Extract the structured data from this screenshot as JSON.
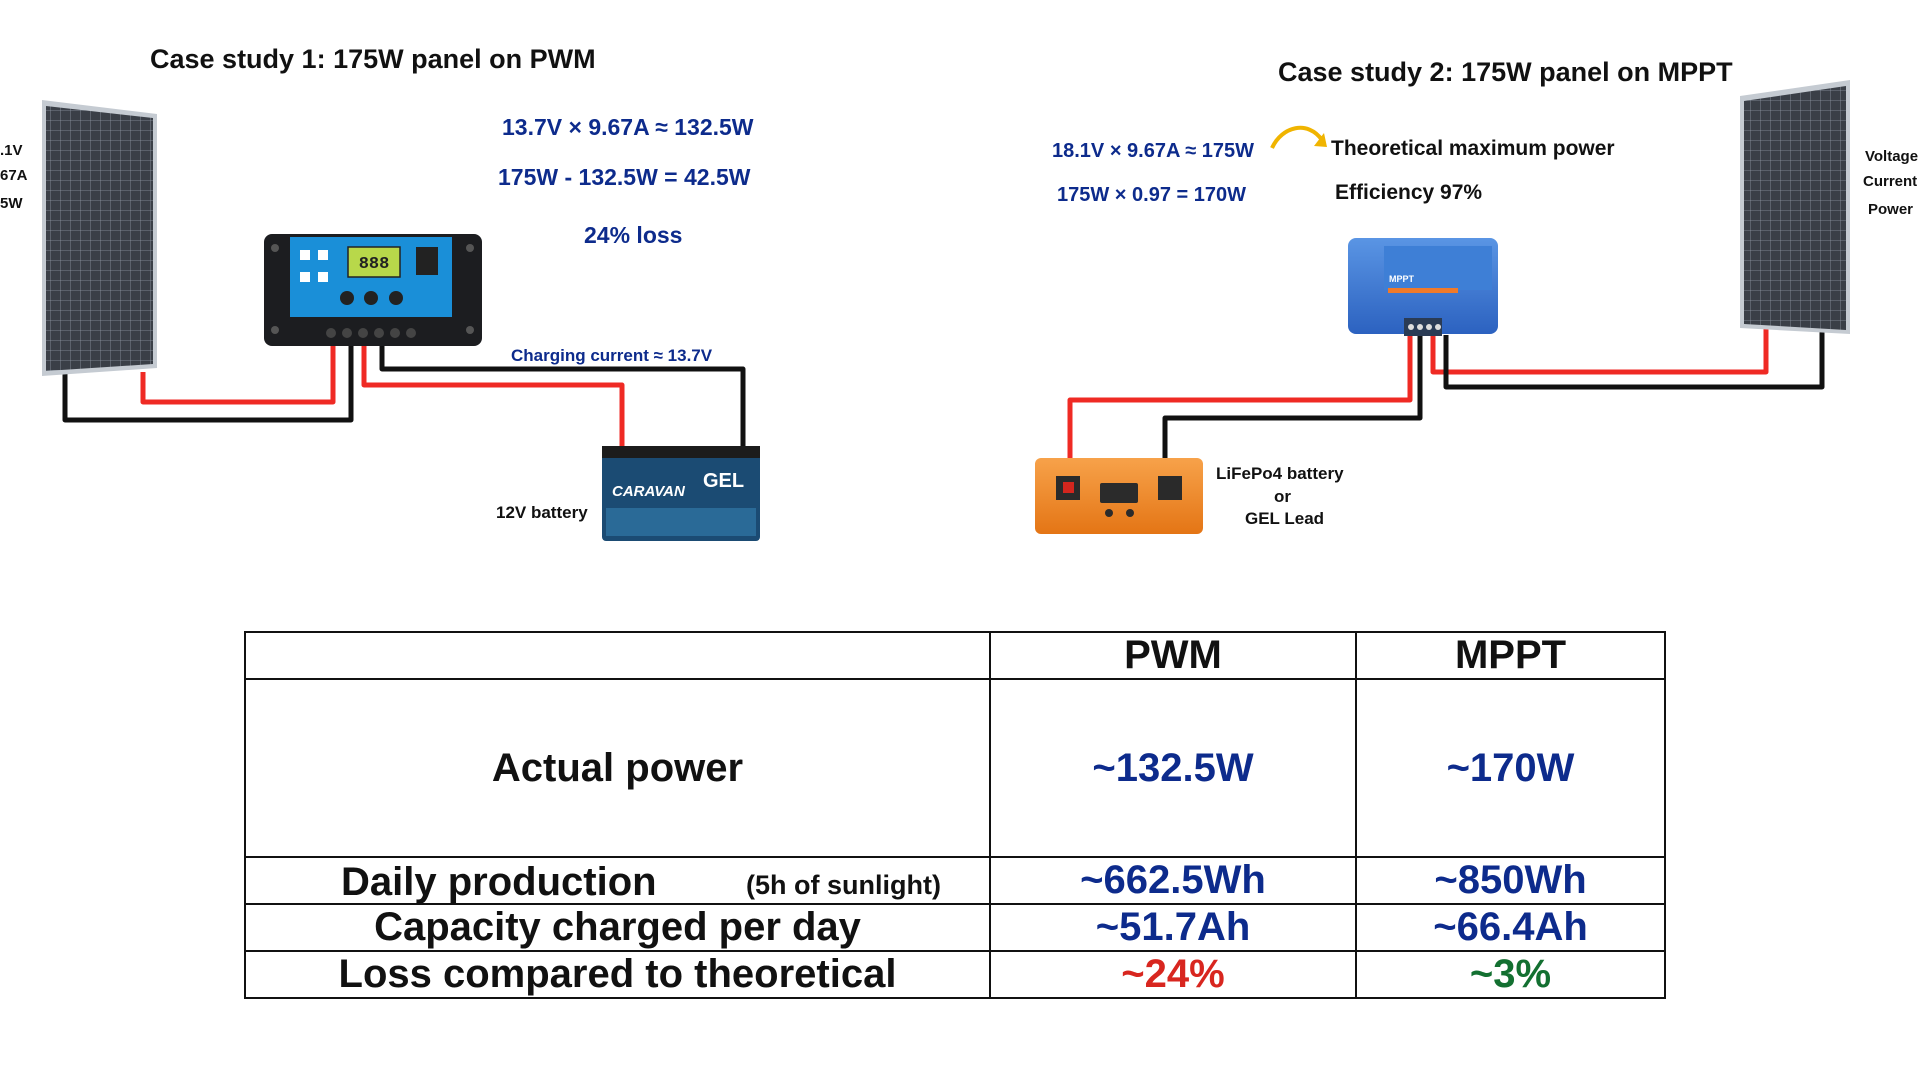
{
  "case1": {
    "title": "Case study 1: 175W panel on PWM",
    "calc1": "13.7V × 9.67A ≈ 132.5W",
    "calc2": "175W - 132.5W = 42.5W",
    "loss": "24% loss",
    "charging_current": "Charging current ≈ 13.7V",
    "battery_label": "12V battery",
    "panel_side_labels": [
      ".1V",
      "67A",
      "5W"
    ],
    "controller_screen": "888",
    "battery_brand": "CARAVAN",
    "battery_type": "GEL"
  },
  "case2": {
    "title": "Case study 2: 175W panel on MPPT",
    "calc1": "18.1V × 9.67A ≈ 175W",
    "calc2": "175W × 0.97 = 170W",
    "theoretical": "Theoretical maximum power",
    "efficiency": "Efficiency 97%",
    "battery_label_1": "LiFePo4 battery",
    "battery_label_2": "or",
    "battery_label_3": "GEL Lead",
    "panel_side_labels": [
      "Voltage",
      "Current",
      "Power"
    ],
    "controller_label": "MPPT"
  },
  "table": {
    "headers": [
      "",
      "PWM",
      "MPPT"
    ],
    "rows": [
      {
        "label": "Actual power",
        "sublabel": "",
        "pwm": "~132.5W",
        "mppt": "~170W"
      },
      {
        "label": "Daily production",
        "sublabel": "(5h of sunlight)",
        "pwm": "~662.5Wh",
        "mppt": "~850Wh"
      },
      {
        "label": "Capacity charged per day",
        "sublabel": "",
        "pwm": "~51.7Ah",
        "mppt": "~66.4Ah"
      },
      {
        "label": "Loss compared to theoretical",
        "sublabel": "",
        "pwm": "~24%",
        "mppt": "~3%"
      }
    ]
  },
  "colors": {
    "calc_blue": "#0d2b8c",
    "loss_red": "#d8261f",
    "loss_green": "#137031",
    "wire_red": "#ef2a24",
    "wire_black": "#111111",
    "pwm_controller_blue": "#1a8fd8",
    "mppt_controller_blue": "#3a78d4",
    "lifepo4_orange": "#f08a2a",
    "gel_battery_blue": "#1b4b73"
  }
}
